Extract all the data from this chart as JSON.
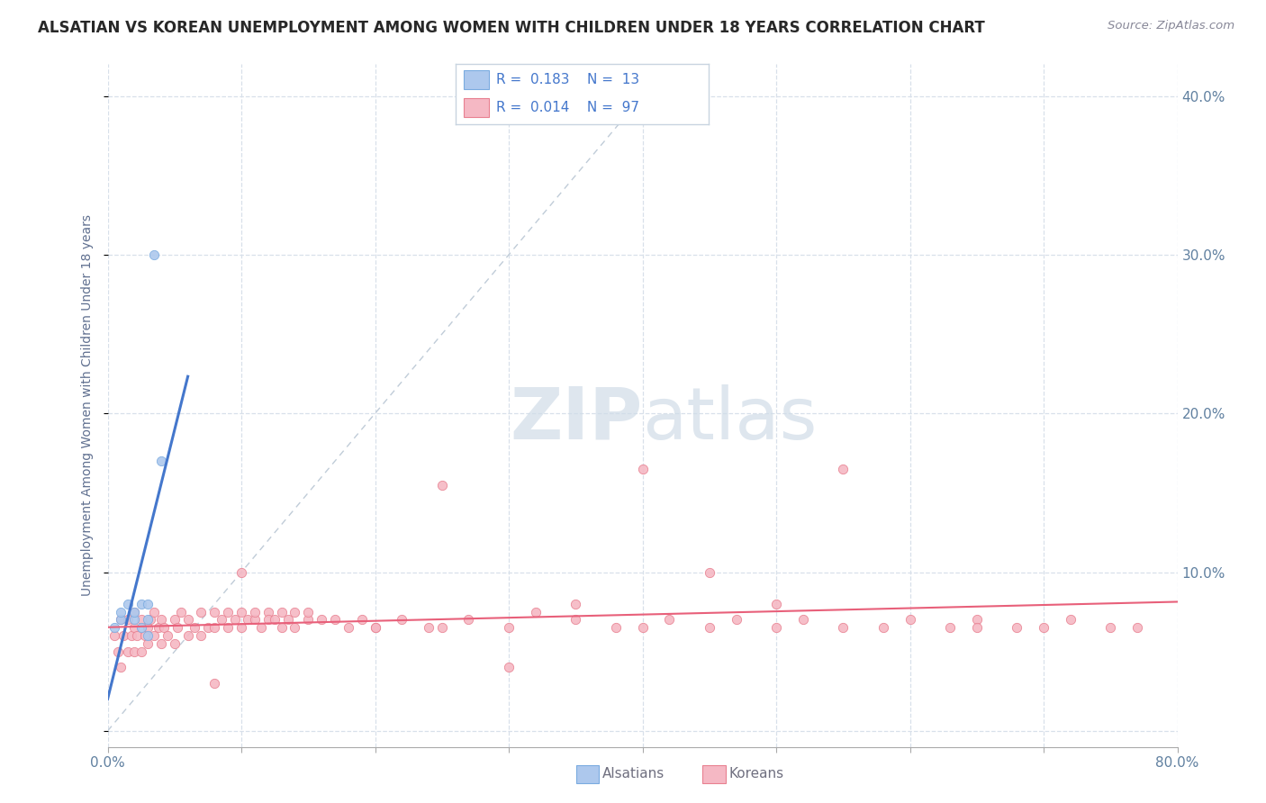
{
  "title": "ALSATIAN VS KOREAN UNEMPLOYMENT AMONG WOMEN WITH CHILDREN UNDER 18 YEARS CORRELATION CHART",
  "source": "Source: ZipAtlas.com",
  "ylabel": "Unemployment Among Women with Children Under 18 years",
  "xlim": [
    0.0,
    0.8
  ],
  "ylim": [
    -0.01,
    0.42
  ],
  "xticks": [
    0.0,
    0.1,
    0.2,
    0.3,
    0.4,
    0.5,
    0.6,
    0.7,
    0.8
  ],
  "yticks": [
    0.0,
    0.1,
    0.2,
    0.3,
    0.4
  ],
  "xtick_labels": [
    "0.0%",
    "",
    "",
    "",
    "",
    "",
    "",
    "",
    "80.0%"
  ],
  "ytick_labels_right": [
    "",
    "10.0%",
    "20.0%",
    "30.0%",
    "40.0%"
  ],
  "alsatian_color": "#adc8ed",
  "alsatian_edge": "#7aabe0",
  "korean_color": "#f5b8c4",
  "korean_edge": "#e88090",
  "trendline_alsatian_color": "#4477cc",
  "trendline_korean_color": "#e8607a",
  "diag_line_color": "#c0ccd8",
  "legend_text_color": "#4477cc",
  "watermark_color": "#d0dce8",
  "background_color": "#ffffff",
  "grid_color": "#d8e0ea",
  "alsatian_x": [
    0.005,
    0.01,
    0.01,
    0.015,
    0.02,
    0.02,
    0.025,
    0.025,
    0.03,
    0.03,
    0.03,
    0.035,
    0.04
  ],
  "alsatian_y": [
    0.065,
    0.07,
    0.075,
    0.08,
    0.07,
    0.075,
    0.065,
    0.08,
    0.07,
    0.08,
    0.06,
    0.3,
    0.17
  ],
  "korean_x": [
    0.005,
    0.008,
    0.01,
    0.01,
    0.012,
    0.015,
    0.015,
    0.018,
    0.02,
    0.02,
    0.02,
    0.022,
    0.025,
    0.025,
    0.028,
    0.03,
    0.03,
    0.032,
    0.035,
    0.035,
    0.038,
    0.04,
    0.04,
    0.042,
    0.045,
    0.05,
    0.05,
    0.052,
    0.055,
    0.06,
    0.06,
    0.065,
    0.07,
    0.07,
    0.075,
    0.08,
    0.08,
    0.085,
    0.09,
    0.09,
    0.095,
    0.1,
    0.1,
    0.105,
    0.11,
    0.11,
    0.115,
    0.12,
    0.12,
    0.125,
    0.13,
    0.13,
    0.135,
    0.14,
    0.14,
    0.15,
    0.15,
    0.16,
    0.17,
    0.18,
    0.19,
    0.2,
    0.22,
    0.24,
    0.25,
    0.27,
    0.3,
    0.32,
    0.35,
    0.38,
    0.4,
    0.42,
    0.45,
    0.47,
    0.5,
    0.52,
    0.55,
    0.58,
    0.6,
    0.63,
    0.65,
    0.68,
    0.7,
    0.72,
    0.75,
    0.77,
    0.5,
    0.4,
    0.3,
    0.55,
    0.65,
    0.35,
    0.45,
    0.25,
    0.2,
    0.1,
    0.08
  ],
  "korean_y": [
    0.06,
    0.05,
    0.04,
    0.07,
    0.06,
    0.05,
    0.07,
    0.06,
    0.05,
    0.065,
    0.075,
    0.06,
    0.05,
    0.07,
    0.06,
    0.055,
    0.065,
    0.07,
    0.06,
    0.075,
    0.065,
    0.055,
    0.07,
    0.065,
    0.06,
    0.055,
    0.07,
    0.065,
    0.075,
    0.06,
    0.07,
    0.065,
    0.06,
    0.075,
    0.065,
    0.065,
    0.075,
    0.07,
    0.065,
    0.075,
    0.07,
    0.065,
    0.075,
    0.07,
    0.07,
    0.075,
    0.065,
    0.075,
    0.07,
    0.07,
    0.065,
    0.075,
    0.07,
    0.075,
    0.065,
    0.07,
    0.075,
    0.07,
    0.07,
    0.065,
    0.07,
    0.065,
    0.07,
    0.065,
    0.155,
    0.07,
    0.065,
    0.075,
    0.07,
    0.065,
    0.165,
    0.07,
    0.065,
    0.07,
    0.065,
    0.07,
    0.065,
    0.065,
    0.07,
    0.065,
    0.07,
    0.065,
    0.065,
    0.07,
    0.065,
    0.065,
    0.08,
    0.065,
    0.04,
    0.165,
    0.065,
    0.08,
    0.1,
    0.065,
    0.065,
    0.1,
    0.03
  ],
  "title_fontsize": 12,
  "axis_fontsize": 10,
  "tick_fontsize": 11,
  "marker_size": 55
}
